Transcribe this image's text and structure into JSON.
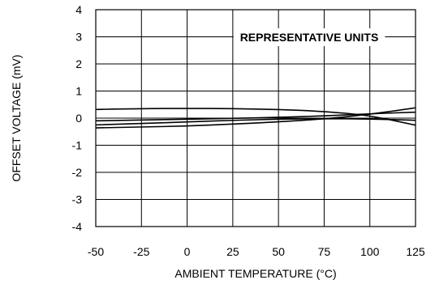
{
  "chart_data": {
    "type": "line",
    "title": "",
    "xlabel": "AMBIENT TEMPERATURE (°C)",
    "ylabel": "OFFSET VOLTAGE (mV)",
    "xlim": [
      -50,
      125
    ],
    "ylim": [
      -4,
      4
    ],
    "x_ticks": [
      -50,
      -25,
      0,
      25,
      50,
      75,
      100,
      125
    ],
    "y_ticks": [
      -4,
      -3,
      -2,
      -1,
      0,
      1,
      2,
      3,
      4
    ],
    "grid": true,
    "annotation": "REPRESENTATIVE UNITS",
    "series": [
      {
        "x": [
          -50,
          -25,
          0,
          25,
          50,
          75,
          100,
          125
        ],
        "y": [
          0.32,
          0.35,
          0.36,
          0.35,
          0.32,
          0.25,
          0.1,
          -0.26
        ]
      },
      {
        "x": [
          -50,
          -25,
          0,
          25,
          50,
          75,
          100,
          125
        ],
        "y": [
          -0.36,
          -0.33,
          -0.29,
          -0.22,
          -0.14,
          -0.03,
          0.14,
          0.38
        ]
      },
      {
        "x": [
          -50,
          -25,
          0,
          25,
          50,
          75,
          100,
          125
        ],
        "y": [
          -0.1,
          -0.07,
          -0.04,
          -0.01,
          0.03,
          0.08,
          0.16,
          0.22
        ]
      },
      {
        "x": [
          -50,
          -25,
          0,
          25,
          50,
          75,
          100,
          125
        ],
        "y": [
          -0.25,
          -0.2,
          -0.14,
          -0.08,
          -0.04,
          -0.02,
          -0.03,
          -0.08
        ]
      }
    ]
  }
}
